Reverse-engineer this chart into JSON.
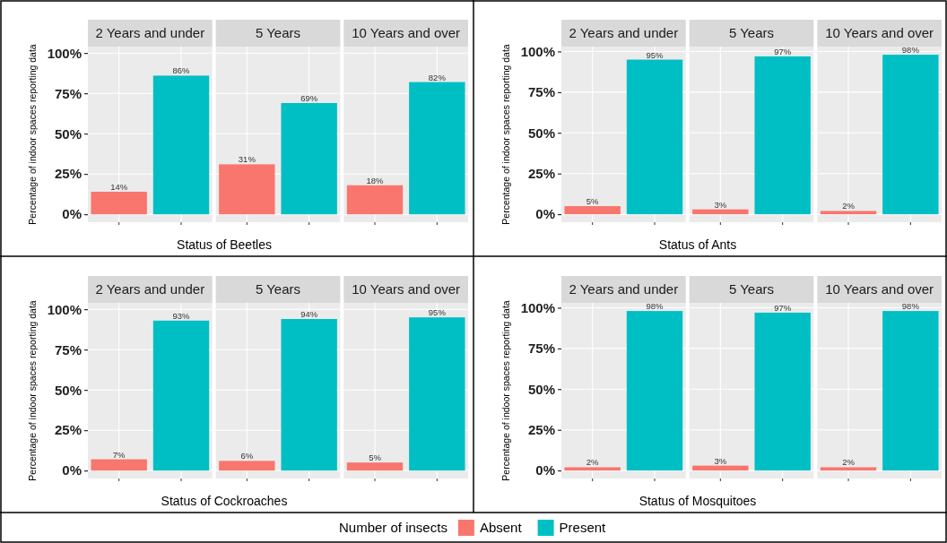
{
  "chart_data": [
    {
      "type": "bar",
      "categories": [
        "2 Years and under",
        "5 Years",
        "10 Years and over"
      ],
      "xlabel": "Status of Beetles",
      "ylabel": "Percentage of indoor spaces reporting data",
      "ylim": [
        -4.9,
        104
      ],
      "yticks": [
        {
          "value": 0,
          "label": "0%"
        },
        {
          "value": 25,
          "label": "25%"
        },
        {
          "value": 50,
          "label": "50%"
        },
        {
          "value": 75,
          "label": "75%"
        },
        {
          "value": 100,
          "label": "100%"
        }
      ],
      "grid": true,
      "legend": "bottom",
      "legend_title": "Number of insects",
      "series": [
        {
          "name": "Absent",
          "color": "#f8766d",
          "values": [
            14,
            31,
            18
          ],
          "value_labels": [
            "14%",
            "31%",
            "18%"
          ]
        },
        {
          "name": "Present",
          "color": "#00bfc4",
          "values": [
            86,
            69,
            82
          ],
          "value_labels": [
            "86%",
            "69%",
            "82%"
          ]
        }
      ]
    },
    {
      "type": "bar",
      "categories": [
        "2 Years and under",
        "5 Years",
        "10 Years and over"
      ],
      "xlabel": "Status of Ants",
      "ylabel": "Percentage of indoor spaces reporting data",
      "ylim": [
        -4.9,
        103
      ],
      "yticks": [
        {
          "value": 0,
          "label": "0%"
        },
        {
          "value": 25,
          "label": "25%"
        },
        {
          "value": 50,
          "label": "50%"
        },
        {
          "value": 75,
          "label": "75%"
        },
        {
          "value": 100,
          "label": "100%"
        }
      ],
      "grid": true,
      "series": [
        {
          "color": "#f8766d",
          "values": [
            5,
            3,
            2
          ],
          "value_labels": [
            "5%",
            "3%",
            "2%"
          ]
        },
        {
          "color": "#00bfc4",
          "values": [
            95,
            97,
            98
          ],
          "value_labels": [
            "95%",
            "97%",
            "98%"
          ]
        }
      ]
    },
    {
      "type": "bar",
      "categories": [
        "2 Years and under",
        "5 Years",
        "10 Years and over"
      ],
      "xlabel": "Status of Cockroaches",
      "ylabel": "Percentage of indoor spaces reporting data",
      "ylim": [
        -4.9,
        104
      ],
      "yticks": [
        {
          "value": 0,
          "label": "0%"
        },
        {
          "value": 25,
          "label": "25%"
        },
        {
          "value": 50,
          "label": "50%"
        },
        {
          "value": 75,
          "label": "75%"
        },
        {
          "value": 100,
          "label": "100%"
        }
      ],
      "grid": true,
      "series": [
        {
          "color": "#f8766d",
          "values": [
            7,
            6,
            5
          ],
          "value_labels": [
            "7%",
            "6%",
            "5%"
          ]
        },
        {
          "color": "#00bfc4",
          "values": [
            93,
            94,
            95
          ],
          "value_labels": [
            "93%",
            "94%",
            "95%"
          ]
        }
      ]
    },
    {
      "type": "bar",
      "categories": [
        "2 Years and under",
        "5 Years",
        "10 Years and over"
      ],
      "xlabel": "Status of Mosquitoes",
      "ylabel": "Percentage of indoor spaces reporting data",
      "ylim": [
        -4.9,
        103
      ],
      "yticks": [
        {
          "value": 0,
          "label": "0%"
        },
        {
          "value": 25,
          "label": "25%"
        },
        {
          "value": 50,
          "label": "50%"
        },
        {
          "value": 75,
          "label": "75%"
        },
        {
          "value": 100,
          "label": "100%"
        }
      ],
      "grid": true,
      "series": [
        {
          "color": "#f8766d",
          "values": [
            2,
            3,
            2
          ],
          "value_labels": [
            "2%",
            "3%",
            "2%"
          ]
        },
        {
          "color": "#00bfc4",
          "values": [
            98,
            97,
            98
          ],
          "value_labels": [
            "98%",
            "97%",
            "98%"
          ]
        }
      ]
    }
  ]
}
